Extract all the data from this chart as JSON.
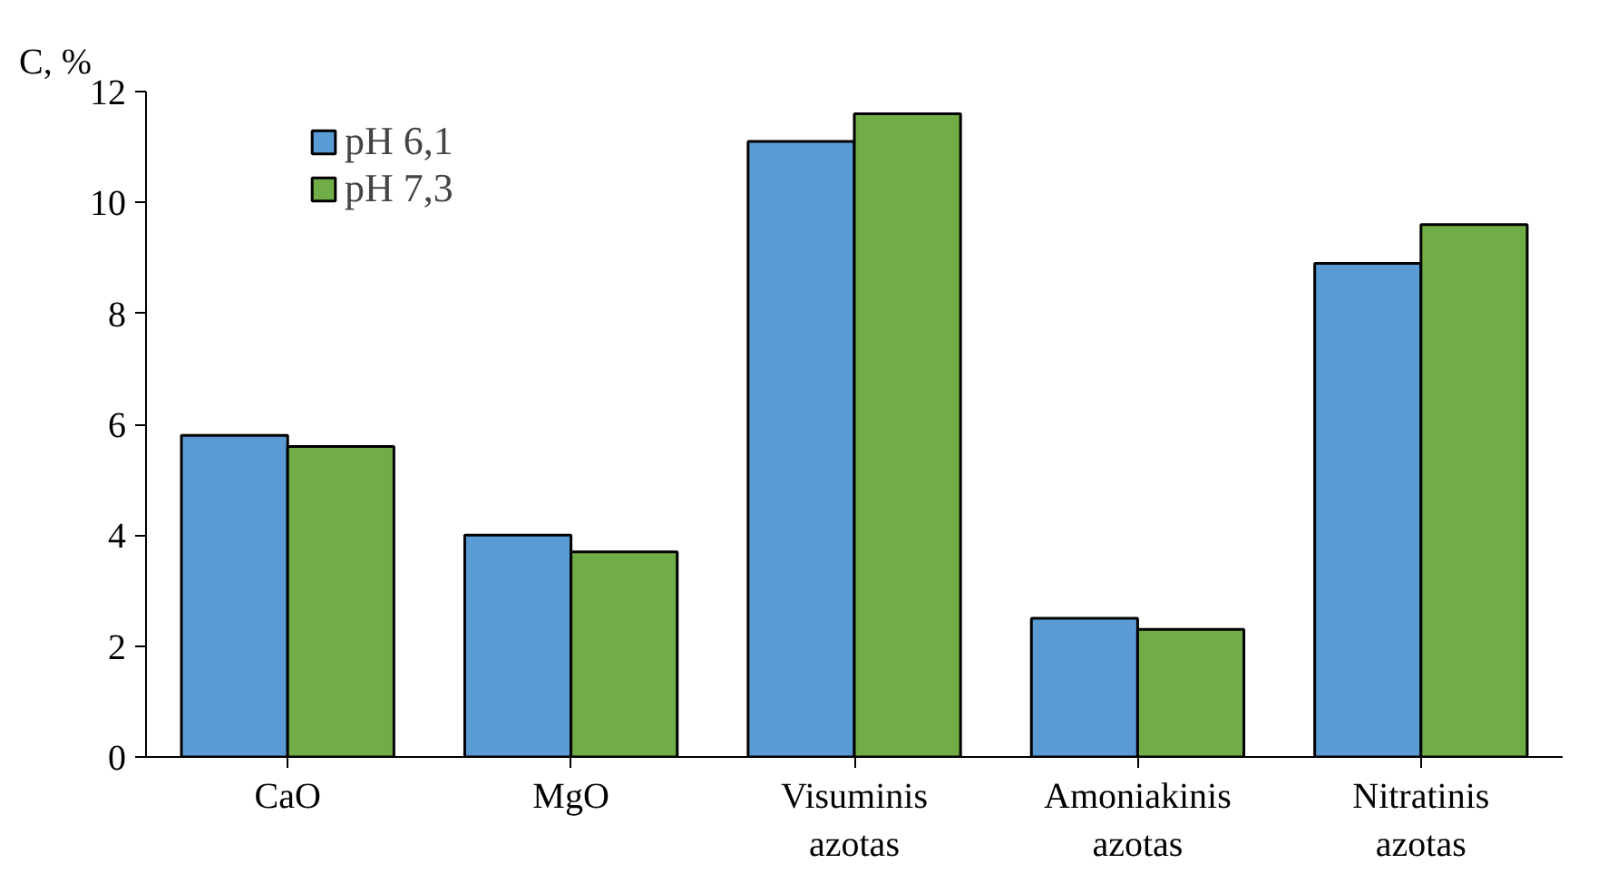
{
  "chart_data": {
    "type": "bar",
    "ylabel": "C, %",
    "categories": [
      "CaO",
      "MgO",
      "Visuminis\nazotas",
      "Amoniakinis\nazotas",
      "Nitratinis\nazotas"
    ],
    "series": [
      {
        "name": "pH 6,1",
        "color": "#5b9bd5",
        "values": [
          5.8,
          4.0,
          11.1,
          2.5,
          8.9
        ]
      },
      {
        "name": "pH 7,3",
        "color": "#70ad47",
        "values": [
          5.6,
          3.7,
          11.6,
          2.3,
          9.6
        ]
      }
    ],
    "ylim": [
      0,
      12
    ],
    "yticks": [
      0,
      2,
      4,
      6,
      8,
      10,
      12
    ],
    "grid": false,
    "legend": "top left"
  }
}
